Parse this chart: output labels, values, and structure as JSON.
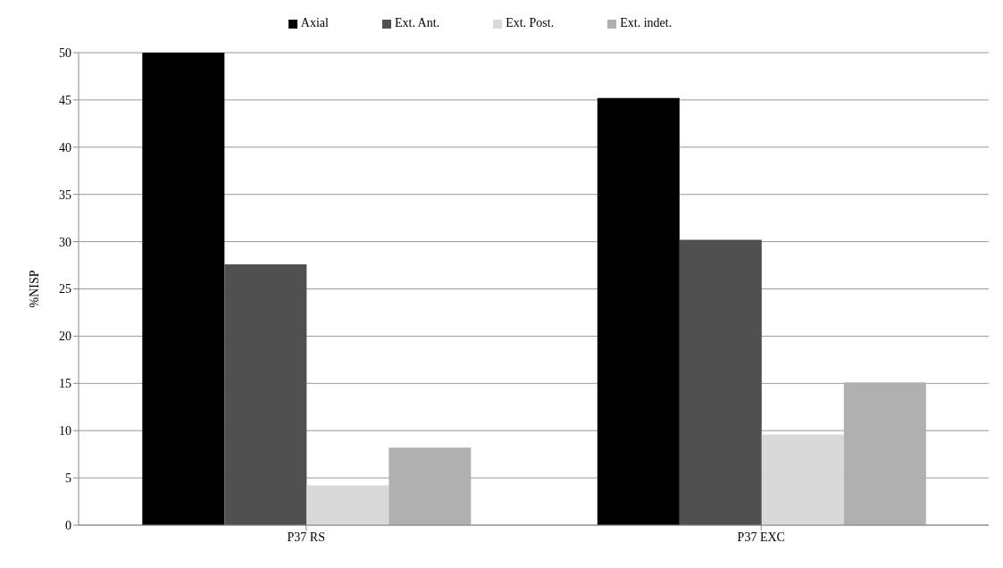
{
  "chart_data": {
    "type": "bar",
    "ylabel": "%NISP",
    "categories": [
      "P37 RS",
      "P37 EXC"
    ],
    "series": [
      {
        "name": "Axial",
        "color": "#000000",
        "values": [
          50,
          45.2
        ]
      },
      {
        "name": "Ext. Ant.",
        "color": "#505050",
        "values": [
          27.6,
          30.2
        ]
      },
      {
        "name": "Ext. Post.",
        "color": "#d9d9d9",
        "values": [
          4.2,
          9.6
        ]
      },
      {
        "name": "Ext. indet.",
        "color": "#b0b0b0",
        "values": [
          8.2,
          15.1
        ]
      }
    ],
    "ylim": [
      0,
      50
    ],
    "yticks": [
      0,
      5,
      10,
      15,
      20,
      25,
      30,
      35,
      40,
      45,
      50
    ],
    "grid": "y",
    "legend": "top"
  }
}
